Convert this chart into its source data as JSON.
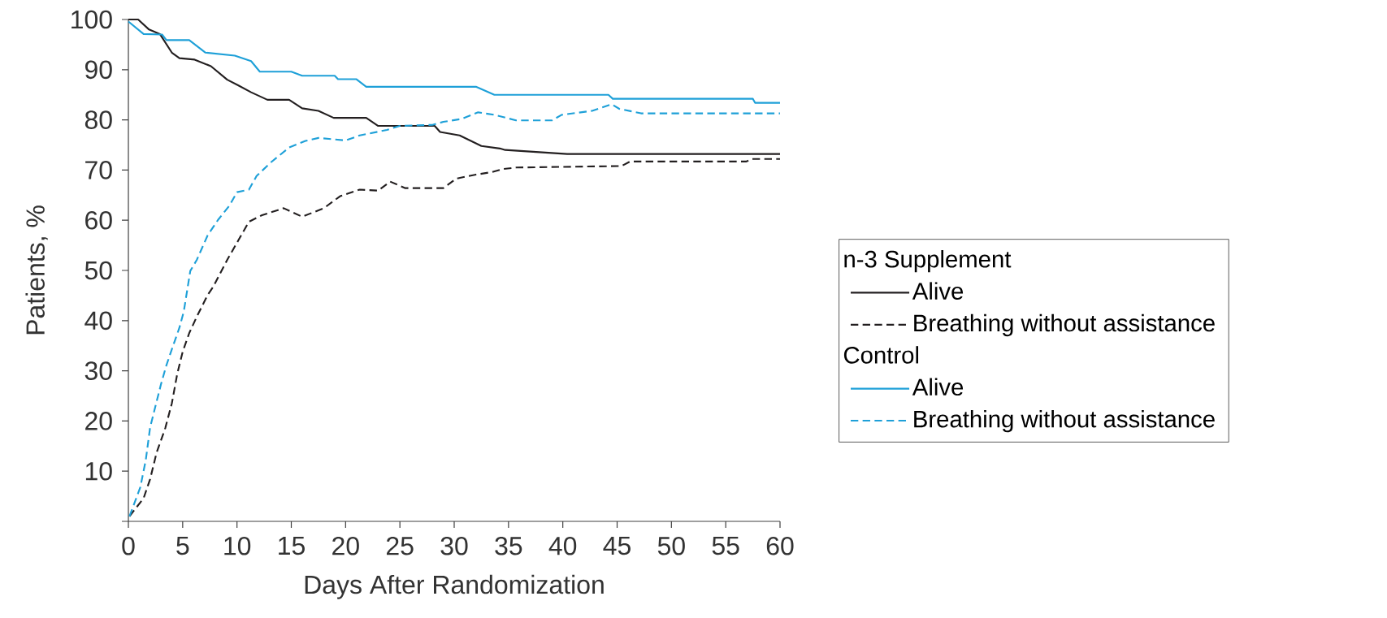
{
  "chart_data": {
    "type": "line",
    "xlabel": "Days After Randomization",
    "ylabel": "Patients, %",
    "xlim": [
      0,
      60
    ],
    "ylim": [
      0,
      100
    ],
    "xticks": [
      0,
      5,
      10,
      15,
      20,
      25,
      30,
      35,
      40,
      45,
      50,
      55,
      60
    ],
    "yticks": [
      {
        "value": 0,
        "label": null
      },
      10,
      20,
      30,
      40,
      50,
      60,
      70,
      80,
      90,
      100
    ],
    "legend": "right",
    "grid": false,
    "marker": "none",
    "annotations": [
      "n-3 Supplement",
      "Control"
    ],
    "series": [
      {
        "name": "Alive",
        "color": "#231f20",
        "line_style": "solid",
        "x": [
          0,
          0.9,
          1.9,
          2.9,
          4,
          4.7,
          6.1,
          7.6,
          9.1,
          10.1,
          11.3,
          12.8,
          14.8,
          16,
          17.5,
          18.9,
          21.9,
          23,
          28.2,
          28.7,
          30.5,
          32.5,
          34.2,
          34.7,
          40.4,
          60
        ],
        "values": [
          100,
          100,
          98,
          97.1,
          93.4,
          92.3,
          92,
          90.7,
          88,
          86.9,
          85.5,
          84,
          84,
          82.3,
          81.8,
          80.4,
          80.4,
          78.8,
          78.8,
          77.6,
          76.9,
          74.8,
          74.3,
          74,
          73.2,
          73.2
        ]
      },
      {
        "name": "Breathing without assistance",
        "color": "#231f20",
        "line_style": "dashed",
        "x": [
          0.1,
          1.4,
          2,
          2.6,
          3.4,
          4,
          4.5,
          5,
          5.6,
          6.3,
          7.3,
          7.8,
          9.1,
          10.1,
          11.1,
          12.3,
          14.3,
          16,
          18,
          19.5,
          21.3,
          23,
          24.1,
          25.5,
          29,
          30.2,
          32,
          33.5,
          34.5,
          35.7,
          45.4,
          46.2,
          56.9,
          57.4,
          60
        ],
        "values": [
          1,
          4.6,
          8.4,
          13.7,
          18.6,
          23.5,
          29.4,
          33.8,
          37.5,
          40.8,
          45.1,
          46.7,
          52.1,
          55.9,
          59.7,
          61,
          62.4,
          60.7,
          62.4,
          64.8,
          66.1,
          65.9,
          67.7,
          66.4,
          66.4,
          68.3,
          69.1,
          69.6,
          70.2,
          70.5,
          70.8,
          71.7,
          71.7,
          72.2,
          72.2
        ]
      },
      {
        "name": "Alive",
        "color": "#1ea0d8",
        "line_style": "solid",
        "x": [
          0,
          1.4,
          3.1,
          3.5,
          5.6,
          7.1,
          9.8,
          11.3,
          12.1,
          15,
          16,
          19,
          19.3,
          21,
          21.9,
          32,
          33.7,
          44.2,
          44.6,
          57.5,
          57.7,
          60
        ],
        "values": [
          99.6,
          97.1,
          97,
          95.9,
          95.9,
          93.4,
          92.8,
          91.7,
          89.6,
          89.6,
          88.8,
          88.8,
          88.1,
          88.1,
          86.6,
          86.6,
          85,
          85,
          84.2,
          84.2,
          83.4,
          83.4
        ]
      },
      {
        "name": "Breathing without assistance",
        "color": "#1ea0d8",
        "line_style": "dashed",
        "x": [
          0.1,
          1.1,
          1.6,
          2,
          2.5,
          3,
          3.5,
          4.1,
          4.7,
          5.1,
          5.7,
          6.3,
          7.3,
          8.3,
          9.3,
          10,
          11.1,
          11.8,
          13.1,
          14.8,
          16.3,
          17.5,
          20,
          21.3,
          23.8,
          25,
          28,
          29,
          30.7,
          32.2,
          33.7,
          35.7,
          39,
          39.9,
          42.7,
          44.5,
          45.2,
          47.2,
          60
        ],
        "values": [
          1,
          6.8,
          12.2,
          18.7,
          23,
          27.3,
          31.1,
          34.9,
          38.6,
          41.8,
          49.9,
          52.1,
          57,
          60.2,
          62.9,
          65.6,
          66.1,
          68.8,
          71.5,
          74.5,
          75.8,
          76.4,
          75.9,
          76.9,
          78,
          78.8,
          79,
          79.6,
          80.2,
          81.5,
          81,
          79.9,
          79.9,
          81,
          81.8,
          83.1,
          82.2,
          81.3,
          81.3
        ]
      }
    ]
  }
}
